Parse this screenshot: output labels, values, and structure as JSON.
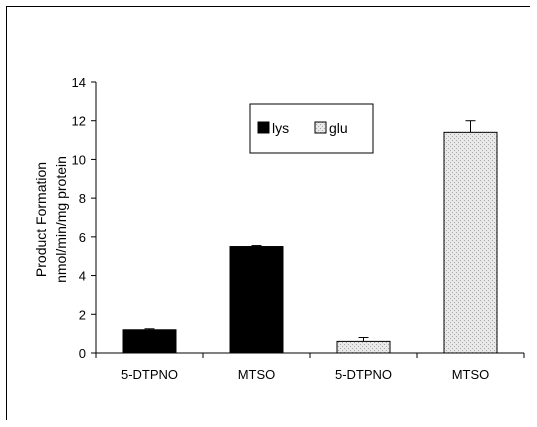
{
  "chart_data": {
    "type": "bar",
    "title": "",
    "ylabel": [
      "Product Formation",
      "nmol/min/mg protein"
    ],
    "xlabel": "",
    "ylim": [
      0,
      14
    ],
    "yticks": [
      0,
      2,
      4,
      6,
      8,
      10,
      12,
      14
    ],
    "categories": [
      "5-DTPNO",
      "MTSO",
      "5-DTPNO",
      "MTSO"
    ],
    "series": [
      {
        "name": "lys",
        "color": "#000000",
        "pattern": "solid",
        "values": [
          1.2,
          5.5,
          null,
          null
        ],
        "errors": [
          0.05,
          0.05,
          null,
          null
        ]
      },
      {
        "name": "glu",
        "color": "#e6e6e6",
        "pattern": "stipple",
        "values": [
          null,
          null,
          0.6,
          11.4
        ],
        "errors": [
          null,
          null,
          0.2,
          0.6
        ]
      }
    ],
    "legend": {
      "placement": "top-center",
      "boxed": true
    },
    "grid": false
  }
}
